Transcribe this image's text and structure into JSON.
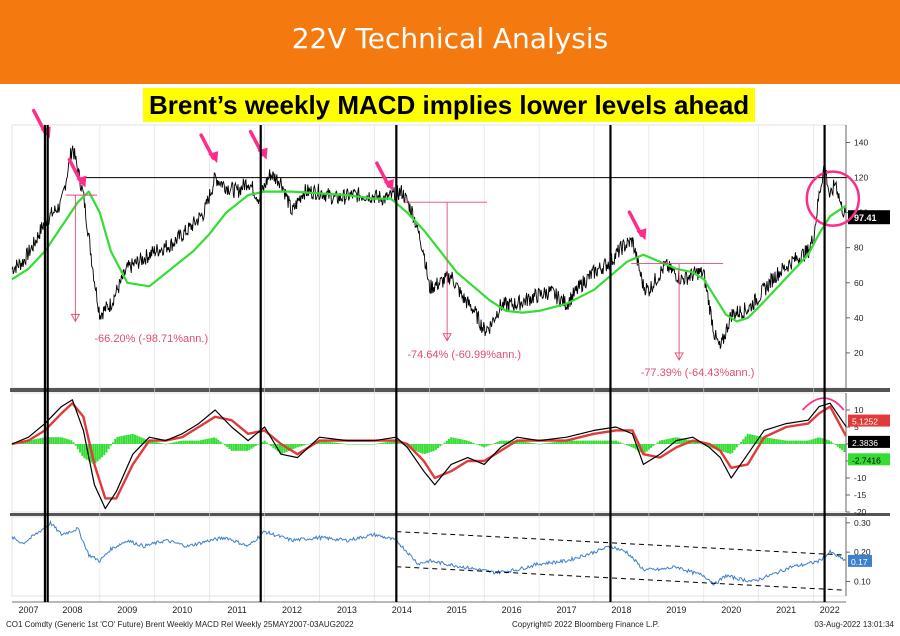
{
  "header": {
    "title": "22V Technical Analysis",
    "headline": "Brent’s weekly MACD implies lower levels ahead"
  },
  "footer": {
    "left": "CO1 Comdty (Generic 1st 'CO' Future) Brent Weekly MACD Rel  Weekly 25MAY2007-03AUG2022",
    "center": "Copyright© 2022 Bloomberg Finance L.P.",
    "right": "03-Aug-2022 13:01:34"
  },
  "colors": {
    "banner": "#f47a10",
    "headline_bg": "#ffff00",
    "price": "#000000",
    "moving_average": "#33dd33",
    "macd": "#000000",
    "signal": "#e23a3a",
    "histogram": "#33dd33",
    "relative": "#3f7fcf",
    "annotation": "#e04c72",
    "arrow": "#ff2d8a"
  },
  "chart_data": [
    {
      "type": "line",
      "panel": "price",
      "ylim": [
        0,
        150
      ],
      "yticks": [
        "20",
        "40",
        "60",
        "80",
        "100",
        "120",
        "140"
      ],
      "x_range": [
        2007.4,
        2022.59
      ],
      "xticks": [
        "2007",
        "2008",
        "2009",
        "2010",
        "2011",
        "2012",
        "2013",
        "2014",
        "2015",
        "2016",
        "2017",
        "2018",
        "2019",
        "2020",
        "2021",
        "2022"
      ],
      "series": [
        {
          "role": "price",
          "x": [
            2007.4,
            2007.6,
            2007.8,
            2008.0,
            2008.3,
            2008.5,
            2008.7,
            2008.9,
            2009.0,
            2009.2,
            2009.5,
            2009.8,
            2010.0,
            2010.3,
            2010.6,
            2010.9,
            2011.1,
            2011.3,
            2011.5,
            2011.7,
            2011.9,
            2012.1,
            2012.3,
            2012.5,
            2012.7,
            2013.0,
            2013.3,
            2013.6,
            2013.9,
            2014.2,
            2014.5,
            2014.7,
            2014.9,
            2015.0,
            2015.2,
            2015.4,
            2015.6,
            2015.8,
            2016.0,
            2016.1,
            2016.3,
            2016.6,
            2016.9,
            2017.2,
            2017.5,
            2017.8,
            2018.0,
            2018.3,
            2018.5,
            2018.7,
            2018.9,
            2019.0,
            2019.3,
            2019.6,
            2019.9,
            2020.0,
            2020.2,
            2020.3,
            2020.5,
            2020.8,
            2021.0,
            2021.3,
            2021.6,
            2021.9,
            2022.0,
            2022.1,
            2022.2,
            2022.3,
            2022.4,
            2022.5,
            2022.59
          ],
          "values": [
            68,
            72,
            82,
            95,
            105,
            138,
            110,
            62,
            42,
            48,
            68,
            74,
            78,
            82,
            90,
            100,
            120,
            115,
            112,
            118,
            108,
            122,
            118,
            100,
            112,
            112,
            108,
            110,
            110,
            108,
            112,
            100,
            78,
            57,
            60,
            64,
            52,
            45,
            33,
            35,
            47,
            48,
            52,
            55,
            48,
            60,
            66,
            72,
            80,
            84,
            58,
            56,
            70,
            62,
            66,
            65,
            30,
            22,
            42,
            45,
            52,
            64,
            72,
            78,
            86,
            110,
            128,
            108,
            118,
            104,
            97.41
          ]
        },
        {
          "role": "moving_average",
          "x": [
            2007.4,
            2007.7,
            2008.0,
            2008.3,
            2008.6,
            2008.8,
            2009.0,
            2009.2,
            2009.5,
            2009.9,
            2010.3,
            2010.7,
            2011.0,
            2011.3,
            2011.7,
            2012.0,
            2012.5,
            2013.0,
            2013.5,
            2014.0,
            2014.3,
            2014.6,
            2014.9,
            2015.2,
            2015.5,
            2015.8,
            2016.1,
            2016.4,
            2016.7,
            2017.0,
            2017.5,
            2018.0,
            2018.3,
            2018.6,
            2018.9,
            2019.2,
            2019.5,
            2019.8,
            2020.0,
            2020.2,
            2020.4,
            2020.6,
            2020.8,
            2021.0,
            2021.3,
            2021.6,
            2021.9,
            2022.1,
            2022.3,
            2022.59
          ],
          "values": [
            62,
            68,
            78,
            92,
            106,
            112,
            100,
            78,
            60,
            58,
            68,
            78,
            88,
            100,
            110,
            112,
            112,
            111,
            110,
            108,
            108,
            100,
            90,
            78,
            66,
            58,
            50,
            44,
            43,
            44,
            48,
            56,
            64,
            72,
            76,
            72,
            68,
            66,
            62,
            52,
            42,
            38,
            40,
            46,
            56,
            66,
            76,
            88,
            98,
            104
          ]
        }
      ],
      "reference_line": 120,
      "last_value": "97.41",
      "annotations": [
        "-66.20% (-98.71%ann.)",
        "-74.64% (-60.99%ann.)",
        "-77.39% (-64.43%ann.)"
      ]
    },
    {
      "type": "line",
      "panel": "macd",
      "ylim": [
        -20,
        15
      ],
      "yticks": [
        "10",
        "5",
        "0",
        "-5",
        "-10",
        "-15",
        "-20"
      ],
      "series": [
        {
          "role": "macd",
          "x": [
            2007.4,
            2007.7,
            2008.0,
            2008.3,
            2008.5,
            2008.7,
            2008.9,
            2009.1,
            2009.3,
            2009.6,
            2009.9,
            2010.2,
            2010.5,
            2010.8,
            2011.1,
            2011.4,
            2011.7,
            2012.0,
            2012.3,
            2012.6,
            2013.0,
            2013.5,
            2014.0,
            2014.4,
            2014.6,
            2014.9,
            2015.1,
            2015.4,
            2015.7,
            2016.0,
            2016.3,
            2016.6,
            2017.0,
            2017.5,
            2018.0,
            2018.4,
            2018.7,
            2018.9,
            2019.2,
            2019.5,
            2019.8,
            2020.1,
            2020.3,
            2020.5,
            2020.8,
            2021.1,
            2021.5,
            2021.9,
            2022.1,
            2022.3,
            2022.59
          ],
          "values": [
            0,
            2,
            6,
            11,
            13,
            4,
            -12,
            -19,
            -14,
            -3,
            2,
            1,
            3,
            6,
            10,
            5,
            1,
            5,
            -3,
            -4,
            2,
            1,
            1,
            2,
            -1,
            -8,
            -12,
            -6,
            -4,
            -6,
            -1,
            2,
            1,
            2,
            4,
            5,
            3,
            -6,
            -3,
            1,
            2,
            -1,
            -4,
            -10,
            -3,
            4,
            6,
            7,
            11,
            12,
            5.1252
          ]
        },
        {
          "role": "signal",
          "x": [
            2007.4,
            2007.7,
            2008.0,
            2008.3,
            2008.5,
            2008.7,
            2008.9,
            2009.1,
            2009.3,
            2009.6,
            2009.9,
            2010.2,
            2010.5,
            2010.8,
            2011.1,
            2011.4,
            2011.7,
            2012.0,
            2012.3,
            2012.6,
            2013.0,
            2013.5,
            2014.0,
            2014.4,
            2014.6,
            2014.9,
            2015.1,
            2015.4,
            2015.7,
            2016.0,
            2016.3,
            2016.6,
            2017.0,
            2017.5,
            2018.0,
            2018.4,
            2018.7,
            2018.9,
            2019.2,
            2019.5,
            2019.8,
            2020.1,
            2020.3,
            2020.5,
            2020.8,
            2021.1,
            2021.5,
            2021.9,
            2022.1,
            2022.3,
            2022.59
          ],
          "values": [
            0,
            1,
            4,
            9,
            12,
            8,
            -6,
            -16,
            -16,
            -6,
            1,
            1,
            2,
            5,
            8,
            7,
            3,
            4,
            0,
            -3,
            1,
            1,
            1,
            1,
            0,
            -5,
            -10,
            -8,
            -5,
            -5,
            -2,
            1,
            1,
            1,
            3,
            4,
            4,
            -3,
            -4,
            -1,
            1,
            0,
            -2,
            -7,
            -6,
            2,
            5,
            6,
            9,
            11,
            2.3836
          ]
        },
        {
          "role": "histogram",
          "x": [
            2007.4,
            2007.7,
            2008.0,
            2008.3,
            2008.5,
            2008.7,
            2008.9,
            2009.1,
            2009.3,
            2009.6,
            2009.9,
            2010.2,
            2010.5,
            2010.8,
            2011.1,
            2011.4,
            2011.7,
            2012.0,
            2012.3,
            2012.6,
            2013.0,
            2013.5,
            2014.0,
            2014.4,
            2014.6,
            2014.9,
            2015.1,
            2015.4,
            2015.7,
            2016.0,
            2016.3,
            2016.6,
            2017.0,
            2017.5,
            2018.0,
            2018.4,
            2018.7,
            2018.9,
            2019.2,
            2019.5,
            2019.8,
            2020.1,
            2020.3,
            2020.5,
            2020.8,
            2021.1,
            2021.5,
            2021.9,
            2022.1,
            2022.3,
            2022.59
          ],
          "values": [
            0,
            1,
            2,
            2,
            1,
            -4,
            -6,
            -3,
            2,
            3,
            1,
            0,
            1,
            1,
            2,
            -2,
            -2,
            1,
            -3,
            -1,
            1,
            0,
            0,
            1,
            -1,
            -3,
            -2,
            2,
            1,
            -1,
            1,
            1,
            0,
            1,
            1,
            1,
            -1,
            -3,
            1,
            2,
            1,
            -1,
            -2,
            -3,
            3,
            2,
            1,
            1,
            2,
            1,
            -2.7416
          ]
        }
      ],
      "last_values": [
        "5.1252",
        "2.3836",
        "-2.7416"
      ]
    },
    {
      "type": "line",
      "panel": "relative",
      "ylim": [
        0.05,
        0.32
      ],
      "yticks": [
        "0.30",
        "0.20",
        "0.10"
      ],
      "series": [
        {
          "role": "relative",
          "x": [
            2007.4,
            2007.6,
            2007.9,
            2008.1,
            2008.3,
            2008.6,
            2008.8,
            2009.0,
            2009.2,
            2009.5,
            2009.8,
            2010.2,
            2010.6,
            2011.0,
            2011.3,
            2011.7,
            2012.0,
            2012.5,
            2013.0,
            2013.5,
            2014.0,
            2014.4,
            2014.6,
            2014.8,
            2015.0,
            2015.3,
            2015.6,
            2015.9,
            2016.2,
            2016.6,
            2017.0,
            2017.5,
            2018.0,
            2018.3,
            2018.6,
            2018.9,
            2019.2,
            2019.5,
            2019.8,
            2020.0,
            2020.2,
            2020.4,
            2020.6,
            2020.9,
            2021.2,
            2021.6,
            2021.9,
            2022.1,
            2022.3,
            2022.59
          ],
          "values": [
            0.25,
            0.23,
            0.27,
            0.3,
            0.26,
            0.28,
            0.19,
            0.17,
            0.21,
            0.24,
            0.22,
            0.24,
            0.22,
            0.24,
            0.25,
            0.22,
            0.27,
            0.24,
            0.25,
            0.24,
            0.26,
            0.24,
            0.2,
            0.16,
            0.17,
            0.16,
            0.15,
            0.14,
            0.13,
            0.14,
            0.16,
            0.17,
            0.2,
            0.22,
            0.2,
            0.14,
            0.14,
            0.15,
            0.13,
            0.12,
            0.09,
            0.12,
            0.11,
            0.1,
            0.12,
            0.15,
            0.16,
            0.17,
            0.2,
            0.17
          ]
        }
      ],
      "trendlines": [
        {
          "x": [
            2014.4,
            2022.55
          ],
          "values": [
            0.27,
            0.19
          ]
        },
        {
          "x": [
            2014.4,
            2022.55
          ],
          "values": [
            0.15,
            0.07
          ]
        }
      ],
      "last_value": "0.17"
    }
  ]
}
